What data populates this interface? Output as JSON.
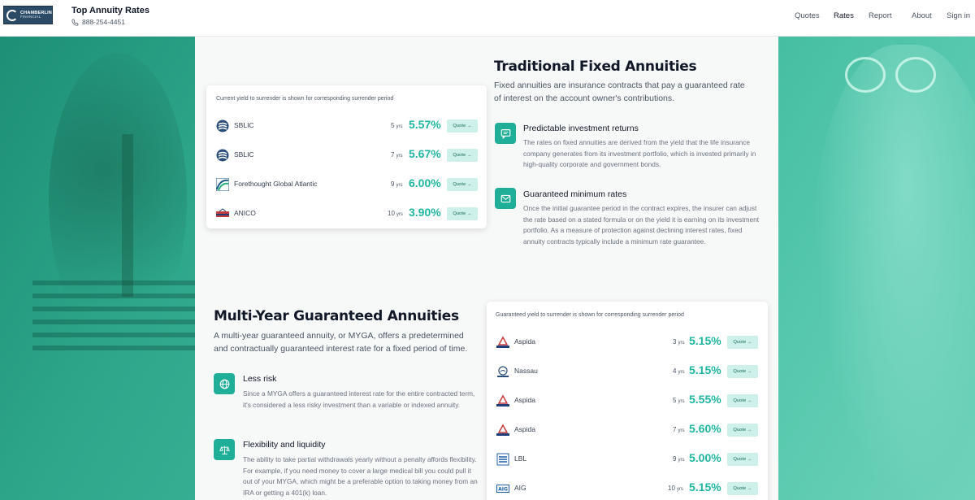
{
  "header": {
    "logo": {
      "line1": "CHAMBERLIN",
      "line2": "FINANCIAL",
      "icon": "chamberlin-logo-icon"
    },
    "title": "Top Annuity Rates",
    "phone": "888-254-4451",
    "nav": [
      "Quotes",
      "Rates",
      "Report",
      "About",
      "Sign in"
    ]
  },
  "fixed": {
    "title": "Traditional Fixed Annuities",
    "lead": "Fixed annuities are insurance contracts that pay a guaranteed rate of interest on the account owner's contributions.",
    "card_caption": "Current yield to surrender is shown for corresponding surrender period",
    "rates": [
      {
        "name": "SBLIC",
        "term": "5",
        "unit": "yrs",
        "rate": "5.57%",
        "quote": "Quote →",
        "icon": "sblic-logo-icon"
      },
      {
        "name": "SBLIC",
        "term": "7",
        "unit": "yrs",
        "rate": "5.67%",
        "quote": "Quote →",
        "icon": "sblic-logo-icon"
      },
      {
        "name": "Forethought Global Atlantic",
        "term": "9",
        "unit": "yrs",
        "rate": "6.00%",
        "quote": "Quote →",
        "icon": "forethought-logo-icon"
      },
      {
        "name": "ANICO",
        "term": "10",
        "unit": "yrs",
        "rate": "3.90%",
        "quote": "Quote →",
        "icon": "anico-logo-icon"
      }
    ],
    "features": [
      {
        "title": "Predictable investment returns",
        "body": "The rates on fixed annuities are derived from the yield that the life insurance company generates from its investment portfolio, which is invested primarily in high-quality corporate and government bonds.",
        "icon": "chat-icon"
      },
      {
        "title": "Guaranteed minimum rates",
        "body": "Once the initial guarantee period in the contract expires, the insurer can adjust the rate based on a stated formula or on the yield it is earning on its investment portfolio. As a measure of protection against declining interest rates, fixed annuity contracts typically include a minimum rate guarantee.",
        "icon": "mail-icon"
      }
    ]
  },
  "myga": {
    "title": "Multi-Year Guaranteed Annuities",
    "lead": "A multi-year guaranteed annuity, or MYGA, offers a predetermined and contractually guaranteed interest rate for a fixed period of time.",
    "card_caption": "Guaranteed yield to surrender is shown for corresponding surrender period",
    "rates": [
      {
        "name": "Aspida",
        "term": "3",
        "unit": "yrs",
        "rate": "5.15%",
        "quote": "Quote →",
        "icon": "aspida-logo-icon"
      },
      {
        "name": "Nassau",
        "term": "4",
        "unit": "yrs",
        "rate": "5.15%",
        "quote": "Quote →",
        "icon": "nassau-logo-icon"
      },
      {
        "name": "Aspida",
        "term": "5",
        "unit": "yrs",
        "rate": "5.55%",
        "quote": "Quote →",
        "icon": "aspida-logo-icon"
      },
      {
        "name": "Aspida",
        "term": "7",
        "unit": "yrs",
        "rate": "5.60%",
        "quote": "Quote →",
        "icon": "aspida-logo-icon"
      },
      {
        "name": "LBL",
        "term": "9",
        "unit": "yrs",
        "rate": "5.00%",
        "quote": "Quote →",
        "icon": "lbl-logo-icon"
      },
      {
        "name": "AIG",
        "term": "10",
        "unit": "yrs",
        "rate": "5.15%",
        "quote": "Quote →",
        "icon": "aig-logo-icon"
      }
    ],
    "features": [
      {
        "title": "Less risk",
        "body": "Since a MYGA offers a guaranteed interest rate for the entire contracted term, it's considered a less risky investment than a variable or indexed annuity.",
        "icon": "globe-icon"
      },
      {
        "title": "Flexibility and liquidity",
        "body": "The ability to take partial withdrawals yearly without a penalty affords flexibility. For example, if you need money to cover a large medical bill you could pull it out of your MYGA, which might be a preferable option to taking money from an IRA or getting a 401(k) loan.",
        "icon": "scale-icon"
      }
    ]
  },
  "colors": {
    "accent": "#1fb5a0",
    "accent_dark": "#1fae98",
    "quote_bg": "#cdf1ea",
    "panel": "#f7f8f8"
  }
}
